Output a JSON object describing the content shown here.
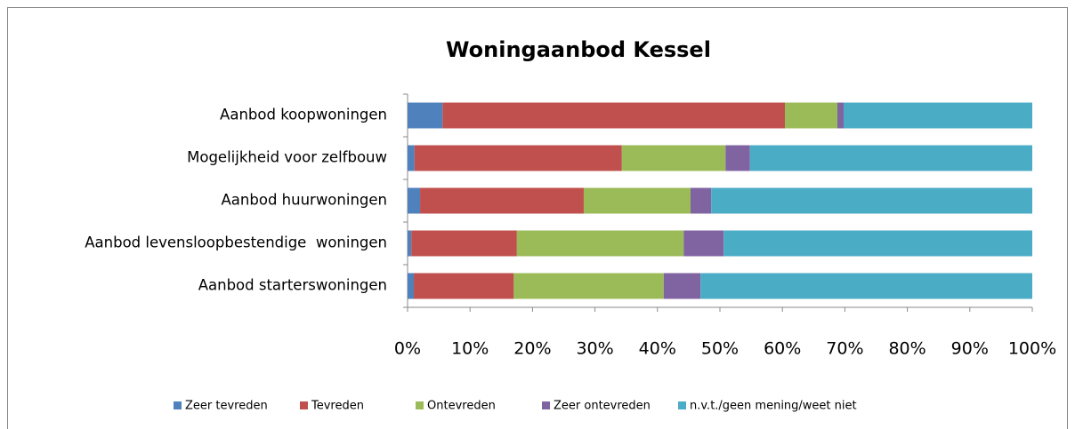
{
  "chart_data": {
    "type": "bar",
    "orientation": "horizontal",
    "stacked": true,
    "title": "Woningaanbod Kessel",
    "categories": [
      "Aanbod koopwoningen",
      "Mogelijkheid voor zelfbouw",
      "Aanbod huurwoningen",
      "Aanbod levensloopbestendige  woningen",
      "Aanbod starterswoningen"
    ],
    "series": [
      {
        "name": "Zeer tevreden",
        "color": "#4f81bd",
        "values": [
          5.6,
          1.1,
          2.0,
          0.6,
          1.0
        ]
      },
      {
        "name": "Tevreden",
        "color": "#c0504d",
        "values": [
          54.8,
          33.2,
          26.2,
          16.9,
          16.0
        ]
      },
      {
        "name": "Ontevreden",
        "color": "#9bbb59",
        "values": [
          8.4,
          16.6,
          17.1,
          26.7,
          24.0
        ]
      },
      {
        "name": "Zeer ontevreden",
        "color": "#8064a2",
        "values": [
          1.0,
          3.9,
          3.3,
          6.4,
          5.9
        ]
      },
      {
        "name": "n.v.t./geen mening/weet niet",
        "color": "#4bacc6",
        "values": [
          30.2,
          45.2,
          51.4,
          49.4,
          53.1
        ]
      }
    ],
    "xlim": [
      0,
      100
    ],
    "xticks": [
      {
        "value": 0,
        "label": "0%"
      },
      {
        "value": 10,
        "label": "10%"
      },
      {
        "value": 20,
        "label": "20%"
      },
      {
        "value": 30,
        "label": "30%"
      },
      {
        "value": 40,
        "label": "40%"
      },
      {
        "value": 50,
        "label": "50%"
      },
      {
        "value": 60,
        "label": "60%"
      },
      {
        "value": 70,
        "label": "70%"
      },
      {
        "value": 80,
        "label": "80%"
      },
      {
        "value": 90,
        "label": "90%"
      },
      {
        "value": 100,
        "label": "100%"
      }
    ],
    "grid": false,
    "legend": "bottom"
  }
}
